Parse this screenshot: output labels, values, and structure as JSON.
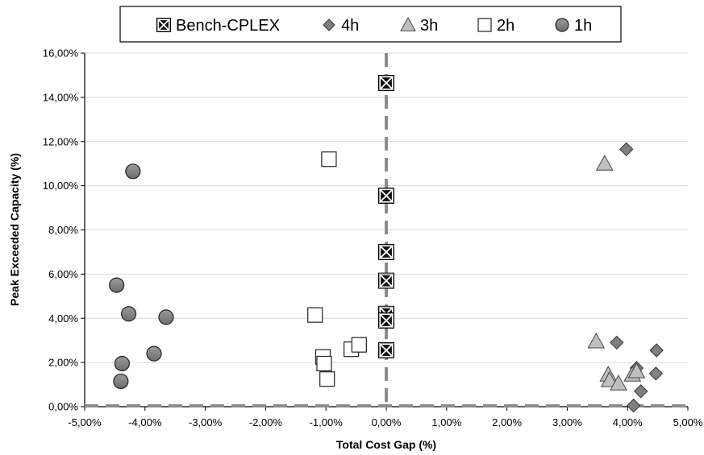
{
  "chart_data": {
    "type": "scatter",
    "xlabel": "Total Cost Gap (%)",
    "ylabel": "Peak Exceeded Capacity (%)",
    "xlim": [
      -5,
      5
    ],
    "ylim": [
      0,
      16
    ],
    "x_ticks": [
      "-5,00%",
      "-4,00%",
      "-3,00%",
      "-2,00%",
      "-1,00%",
      "0,00%",
      "1,00%",
      "2,00%",
      "3,00%",
      "4,00%",
      "5,00%"
    ],
    "y_ticks": [
      "0,00%",
      "2,00%",
      "4,00%",
      "6,00%",
      "8,00%",
      "10,00%",
      "12,00%",
      "14,00%",
      "16,00%"
    ],
    "grid": "horizontal",
    "legend_position": "top",
    "reference_lines": {
      "vertical_x": 0,
      "horizontal_y": 0,
      "style": "dashed",
      "color": "#8c8c8c"
    },
    "series": [
      {
        "name": "Bench-CPLEX",
        "marker": "boxed-x",
        "color": "#111111",
        "points": [
          [
            0,
            14.65
          ],
          [
            0,
            9.55
          ],
          [
            0,
            7.0
          ],
          [
            0,
            5.7
          ],
          [
            0,
            4.2
          ],
          [
            0,
            3.9
          ],
          [
            0,
            2.55
          ]
        ]
      },
      {
        "name": "4h",
        "marker": "diamond",
        "color": "#7f7f7f",
        "points": [
          [
            3.98,
            11.65
          ],
          [
            3.82,
            2.9
          ],
          [
            4.48,
            2.55
          ],
          [
            4.15,
            1.75
          ],
          [
            4.47,
            1.5
          ],
          [
            4.22,
            0.7
          ],
          [
            4.1,
            0.05
          ]
        ]
      },
      {
        "name": "3h",
        "marker": "triangle",
        "color": "#bfbfbf",
        "points": [
          [
            3.62,
            11.0
          ],
          [
            3.48,
            2.95
          ],
          [
            3.68,
            1.45
          ],
          [
            3.7,
            1.2
          ],
          [
            3.85,
            1.05
          ],
          [
            4.08,
            1.45
          ],
          [
            4.15,
            1.6
          ]
        ]
      },
      {
        "name": "2h",
        "marker": "square",
        "color": "#ffffff",
        "points": [
          [
            -0.95,
            11.2
          ],
          [
            -1.18,
            4.15
          ],
          [
            -1.05,
            2.25
          ],
          [
            -1.03,
            1.95
          ],
          [
            -0.98,
            1.25
          ],
          [
            -0.58,
            2.6
          ],
          [
            -0.45,
            2.8
          ]
        ]
      },
      {
        "name": "1h",
        "marker": "circle",
        "color": "#7f7f7f",
        "points": [
          [
            -4.2,
            10.65
          ],
          [
            -4.47,
            5.5
          ],
          [
            -4.27,
            4.2
          ],
          [
            -3.65,
            4.05
          ],
          [
            -4.38,
            1.95
          ],
          [
            -3.85,
            2.4
          ],
          [
            -4.4,
            1.15
          ]
        ]
      }
    ]
  }
}
